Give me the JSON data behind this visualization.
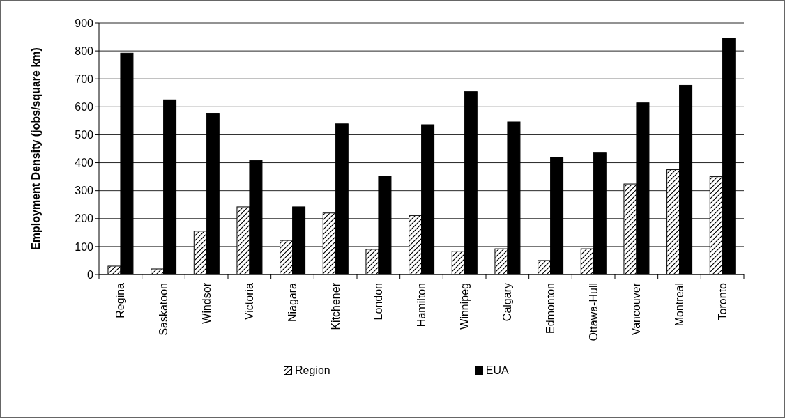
{
  "chart_data": {
    "type": "bar",
    "ylabel": "Employment Density (jobs/square km)",
    "categories": [
      "Regina",
      "Saskatoon",
      "Windsor",
      "Victoria",
      "Niagara",
      "Kitchener",
      "London",
      "Hamilton",
      "Winnipeg",
      "Calgary",
      "Edmonton",
      "Ottawa-Hull",
      "Vancouver",
      "Montreal",
      "Toronto"
    ],
    "series": [
      {
        "name": "Region",
        "color": "#ffffff",
        "values": [
          30,
          20,
          155,
          242,
          122,
          220,
          90,
          211,
          83,
          92,
          50,
          92,
          324,
          375,
          350
        ]
      },
      {
        "name": "EUA",
        "color": "#000000",
        "values": [
          792,
          625,
          577,
          408,
          242,
          539,
          352,
          536,
          654,
          546,
          419,
          437,
          614,
          677,
          846
        ]
      }
    ],
    "ylim": [
      0,
      900
    ],
    "yticks": [
      0,
      100,
      200,
      300,
      400,
      500,
      600,
      700,
      800,
      900
    ],
    "grid": "y",
    "legend": "bottom"
  }
}
